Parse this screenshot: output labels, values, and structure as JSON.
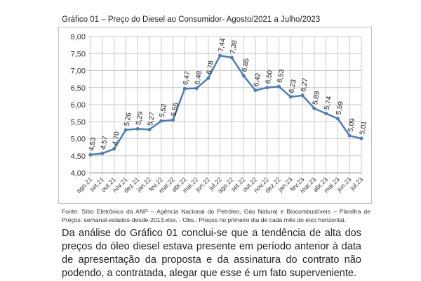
{
  "document": {
    "chart_title": "Gráfico 01 – Preço do Diesel ao Consumidor- Agosto/2021 a Julho/2023",
    "source_note": "Fonte: Sítio Eletrônico da ANP – Agência Nacional do Petróleo, Gás Natural e Biocombustíveis – Planilha de Preços: semanal-estados-desde-2013.xlsx. - Obs.: Preços no primeiro dia de cada mês do eixo horizontal.",
    "paragraph": "Da análise do Gráfico 01 conclui-se que a tendência de alta dos preços do óleo diesel estava presente em período anterior à data de apresentação da proposta e da assinatura do contrato não podendo, a contratada, alegar que esse é um fato superveniente."
  },
  "chart_data": {
    "type": "line",
    "title": "Gráfico 01 – Preço do Diesel ao Consumidor- Agosto/2021 a Julho/2023",
    "xlabel": "",
    "ylabel": "",
    "ylim": [
      4.0,
      8.0
    ],
    "yticks": [
      "4,00",
      "4,50",
      "5,00",
      "5,50",
      "6,00",
      "6,50",
      "7,00",
      "7,50",
      "8,00"
    ],
    "grid": true,
    "color": "#4a7ebb",
    "categories": [
      "ago.21",
      "set.21",
      "out.21",
      "nov.21",
      "dez.21",
      "jan.22",
      "fev.22",
      "mar.22",
      "abr.22",
      "mai.22",
      "jun.22",
      "jul.22",
      "ago.22",
      "set.22",
      "out.22",
      "nov.22",
      "dez.22",
      "jan.23",
      "fev.23",
      "mar.23",
      "abr.23",
      "mai.23",
      "jun.23",
      "jul.23"
    ],
    "values": [
      4.53,
      4.57,
      4.7,
      5.26,
      5.29,
      5.27,
      5.52,
      5.55,
      6.47,
      6.48,
      6.78,
      7.44,
      7.38,
      6.85,
      6.42,
      6.5,
      6.53,
      6.23,
      6.27,
      5.89,
      5.74,
      5.59,
      5.09,
      5.01
    ],
    "labels": [
      "4,53",
      "4,57",
      "4,70",
      "5,26",
      "5,29",
      "5,27",
      "5,52",
      "5,55",
      "6,47",
      "6,48",
      "6,78",
      "7,44",
      "7,38",
      "6,85",
      "6,42",
      "6,50",
      "6,53",
      "6,23",
      "6,27",
      "5,89",
      "5,74",
      "5,59",
      "5,09",
      "5,01"
    ]
  }
}
